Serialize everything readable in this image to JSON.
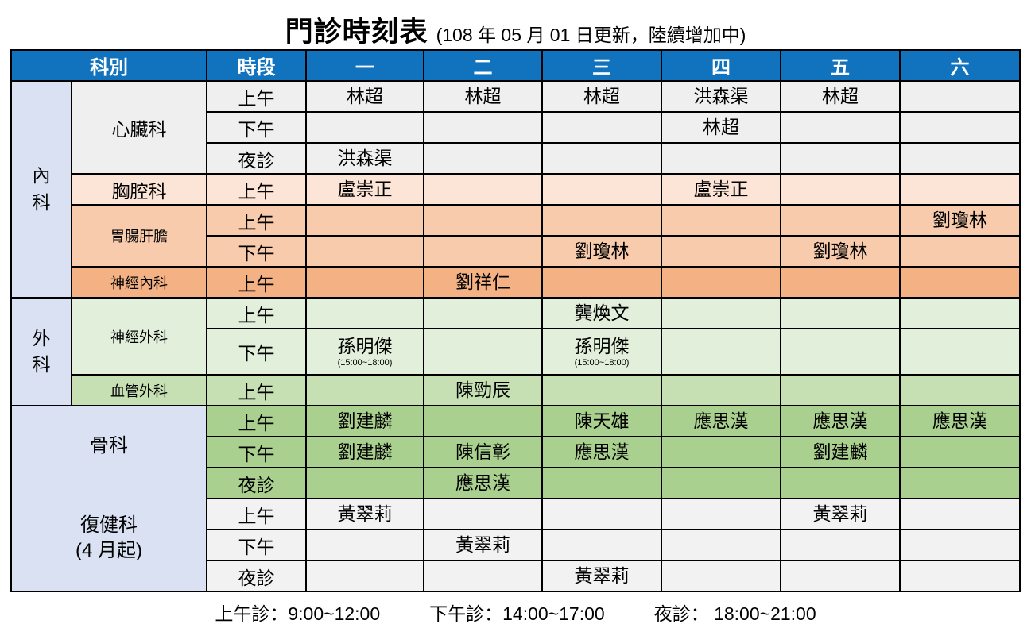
{
  "title": {
    "main": "門診時刻表",
    "sub": "(108 年 05 月 01 日更新，陸續增加中)"
  },
  "colors": {
    "header_bg": "#1172be",
    "header_text": "#ffffff",
    "group_bg": "#d9e1f2",
    "cardiology_bg": "#efefef",
    "chest_bg": "#fce4d6",
    "gastro_bg": "#f8cbad",
    "neuro_med_bg": "#f4b183",
    "neuro_surg_bg": "#e2efda",
    "vascular_bg": "#c6e0b4",
    "ortho_bg": "#a9d08e",
    "rehab_bg": "#f2f2f2",
    "border": "#000000"
  },
  "table": {
    "header": {
      "dept": "科別",
      "period": "時段",
      "days": [
        "一",
        "二",
        "三",
        "四",
        "五",
        "六"
      ]
    },
    "rows": [
      {
        "group": {
          "label": "內\n科",
          "rowspan": 7
        },
        "dept": {
          "label": "心臟科",
          "rowspan": 3,
          "small": false
        },
        "period": "上午",
        "bg": "#efefef",
        "cells": [
          "林超",
          "林超",
          "林超",
          "洪森渠",
          "林超",
          ""
        ]
      },
      {
        "period": "下午",
        "bg": "#efefef",
        "cells": [
          "",
          "",
          "",
          "林超",
          "",
          ""
        ]
      },
      {
        "period": "夜診",
        "bg": "#efefef",
        "cells": [
          "洪森渠",
          "",
          "",
          "",
          "",
          ""
        ]
      },
      {
        "dept": {
          "label": "胸腔科",
          "rowspan": 1,
          "small": false
        },
        "period": "上午",
        "bg": "#fce4d6",
        "cells": [
          "盧崇正",
          "",
          "",
          "盧崇正",
          "",
          ""
        ]
      },
      {
        "dept": {
          "label": "胃腸肝膽",
          "rowspan": 2,
          "small": true
        },
        "period": "上午",
        "bg": "#f8cbad",
        "cells": [
          "",
          "",
          "",
          "",
          "",
          "劉瓊林"
        ]
      },
      {
        "period": "下午",
        "bg": "#f8cbad",
        "cells": [
          "",
          "",
          "劉瓊林",
          "",
          "劉瓊林",
          ""
        ]
      },
      {
        "dept": {
          "label": "神經內科",
          "rowspan": 1,
          "small": true
        },
        "period": "上午",
        "bg": "#f4b183",
        "cells": [
          "",
          "劉祥仁",
          "",
          "",
          "",
          ""
        ]
      },
      {
        "group": {
          "label": "外\n科",
          "rowspan": 3
        },
        "dept": {
          "label": "神經外科",
          "rowspan": 2,
          "small": true
        },
        "period": "上午",
        "bg": "#e2efda",
        "cells": [
          "",
          "",
          "龔煥文",
          "",
          "",
          ""
        ]
      },
      {
        "period": "下午",
        "bg": "#e2efda",
        "tall": true,
        "cells": [
          "孫明傑",
          "",
          "孫明傑",
          "",
          "",
          ""
        ],
        "notes": {
          "0": "(15:00~18:00)",
          "2": "(15:00~18:00)"
        }
      },
      {
        "dept": {
          "label": "血管外科",
          "rowspan": 1,
          "small": true
        },
        "period": "上午",
        "bg": "#c6e0b4",
        "cells": [
          "",
          "陳勁辰",
          "",
          "",
          "",
          ""
        ]
      },
      {
        "bigcell": {
          "rowspan": 6,
          "label1": "骨科",
          "label2": "復健科",
          "label3": "(4 月起)"
        },
        "period": "上午",
        "bg": "#a9d08e",
        "cells": [
          "劉建麟",
          "",
          "陳天雄",
          "應思漢",
          "應思漢",
          "應思漢"
        ]
      },
      {
        "period": "下午",
        "bg": "#a9d08e",
        "cells": [
          "劉建麟",
          "陳信彰",
          "應思漢",
          "",
          "劉建麟",
          ""
        ]
      },
      {
        "period": "夜診",
        "bg": "#a9d08e",
        "cells": [
          "",
          "應思漢",
          "",
          "",
          "",
          ""
        ]
      },
      {
        "period": "上午",
        "bg": "#f2f2f2",
        "cells": [
          "黃翠莉",
          "",
          "",
          "",
          "黃翠莉",
          ""
        ]
      },
      {
        "period": "下午",
        "bg": "#f2f2f2",
        "cells": [
          "",
          "黃翠莉",
          "",
          "",
          "",
          ""
        ]
      },
      {
        "period": "夜診",
        "bg": "#f2f2f2",
        "cells": [
          "",
          "",
          "黃翠莉",
          "",
          "",
          ""
        ]
      }
    ]
  },
  "legend": {
    "morning": "上午診：9:00~12:00",
    "afternoon": "下午診：14:00~17:00",
    "night": "夜診： 18:00~21:00"
  }
}
